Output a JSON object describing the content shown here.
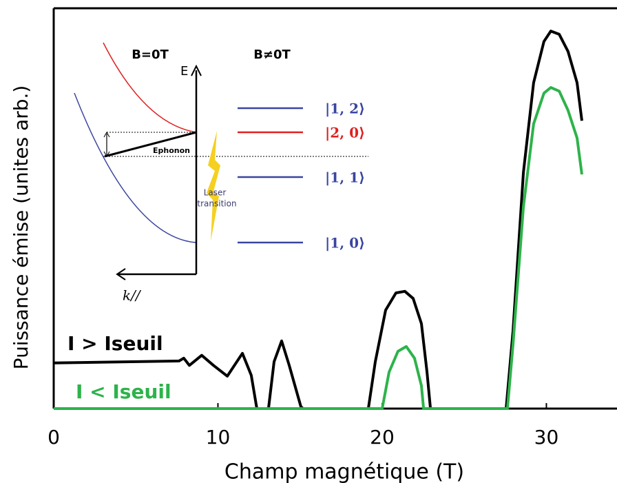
{
  "chart_data": {
    "type": "line",
    "xlabel": "Champ magnétique (T)",
    "ylabel": "Puissance émise (unites arb.)",
    "xlim": [
      0,
      34.3
    ],
    "ylim": [
      0,
      10
    ],
    "xticks": [
      0,
      10,
      20,
      30
    ],
    "series": [
      {
        "name": "I > Iseuil",
        "color": "#000000",
        "x": [
          0,
          7.63,
          7.92,
          8.26,
          9.01,
          9.73,
          10.57,
          11.49,
          12.03,
          12.37,
          13.08,
          13.42,
          13.88,
          14.34,
          15.05,
          15.18,
          19.16,
          19.58,
          20.21,
          20.84,
          21.38,
          21.89,
          22.39,
          22.73,
          22.94,
          27.55,
          27.97,
          28.6,
          29.22,
          29.85,
          30.27,
          30.78,
          31.32,
          31.87,
          32.16
        ],
        "values": [
          1.14,
          1.19,
          1.26,
          1.08,
          1.33,
          1.08,
          0.81,
          1.38,
          0.83,
          0,
          0,
          1.17,
          1.69,
          1.08,
          0.05,
          0,
          0,
          1.17,
          2.46,
          2.89,
          2.93,
          2.75,
          2.12,
          0.91,
          0,
          0,
          1.94,
          5.9,
          8.14,
          9.17,
          9.43,
          9.35,
          8.92,
          8.14,
          7.19
        ]
      },
      {
        "name": "I < Iseuil",
        "color": "#2db34a",
        "x": [
          0,
          20.0,
          20.42,
          20.96,
          21.47,
          21.97,
          22.39,
          22.52,
          27.63,
          27.97,
          28.6,
          29.22,
          29.85,
          30.27,
          30.78,
          31.32,
          31.87,
          32.16
        ],
        "values": [
          0,
          0,
          0.91,
          1.43,
          1.55,
          1.26,
          0.57,
          0,
          0,
          1.6,
          5.04,
          7.11,
          7.88,
          8.02,
          7.93,
          7.45,
          6.76,
          5.85
        ]
      }
    ],
    "annotations": {
      "b0": "B=0T",
      "bn": "B≠0T",
      "energy": "E",
      "phonon": "Ephonon",
      "laser1": "Laser",
      "laser2": "transition",
      "k": "k//",
      "s12": "|1, 2⟩",
      "s20": "|2, 0⟩",
      "s11": "|1, 1⟩",
      "s10": "|1, 0⟩"
    }
  }
}
